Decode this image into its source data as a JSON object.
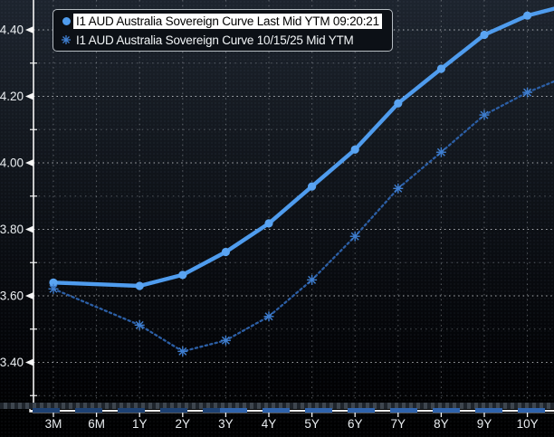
{
  "window": {
    "description": "Sovereign yield curve chart",
    "background_top": "#1d242e",
    "background_bottom": "#000000"
  },
  "legend": {
    "items": [
      {
        "label": "I1 AUD Australia Sovereign Curve Last Mid YTM 09:20:21",
        "marker": "circle-icon",
        "marker_color": "#4f9cee",
        "highlighted": true
      },
      {
        "label": "I1 AUD Australia Sovereign Curve 10/15/25 Mid YTM",
        "marker": "asterisk-icon",
        "marker_color": "#3f7ecf",
        "highlighted": false
      }
    ]
  },
  "chart_data": {
    "type": "line",
    "title": "",
    "xlabel": "",
    "ylabel": "",
    "categories": [
      "3M",
      "6M",
      "1Y",
      "2Y",
      "3Y",
      "4Y",
      "5Y",
      "6Y",
      "7Y",
      "8Y",
      "9Y",
      "10Y"
    ],
    "ylim": [
      3.285,
      4.49
    ],
    "y_ticks_major": [
      3.4,
      3.6,
      3.8,
      4.0,
      4.2,
      4.4
    ],
    "y_ticks_minor": [
      3.3,
      3.5,
      3.7,
      3.9,
      4.1,
      4.3
    ],
    "grid": "dotted",
    "legend_position": "top-left",
    "series": [
      {
        "name": "I1 AUD Australia Sovereign Curve Last Mid YTM 09:20:21",
        "style": "solid",
        "marker": "circle",
        "color": "#4f9cee",
        "marker_color": "#5aa4f2",
        "points": [
          {
            "tenor": "3M",
            "value": 3.64
          },
          {
            "tenor": "1Y",
            "value": 3.63
          },
          {
            "tenor": "2Y",
            "value": 3.663
          },
          {
            "tenor": "3Y",
            "value": 3.732
          },
          {
            "tenor": "4Y",
            "value": 3.818
          },
          {
            "tenor": "5Y",
            "value": 3.929
          },
          {
            "tenor": "6Y",
            "value": 4.04
          },
          {
            "tenor": "7Y",
            "value": 4.179
          },
          {
            "tenor": "8Y",
            "value": 4.283
          },
          {
            "tenor": "9Y",
            "value": 4.385
          },
          {
            "tenor": "10Y",
            "value": 4.443
          }
        ],
        "right_edge_value": 4.465
      },
      {
        "name": "I1 AUD Australia Sovereign Curve 10/15/25 Mid YTM",
        "style": "dotted",
        "marker": "asterisk",
        "color": "#2c5fa6",
        "marker_color": "#3f7ecf",
        "points": [
          {
            "tenor": "3M",
            "value": 3.621
          },
          {
            "tenor": "1Y",
            "value": 3.512
          },
          {
            "tenor": "2Y",
            "value": 3.433
          },
          {
            "tenor": "3Y",
            "value": 3.466
          },
          {
            "tenor": "4Y",
            "value": 3.538
          },
          {
            "tenor": "5Y",
            "value": 3.648
          },
          {
            "tenor": "6Y",
            "value": 3.779
          },
          {
            "tenor": "7Y",
            "value": 3.923
          },
          {
            "tenor": "8Y",
            "value": 4.032
          },
          {
            "tenor": "9Y",
            "value": 4.144
          },
          {
            "tenor": "10Y",
            "value": 4.212
          }
        ],
        "right_edge_value": 4.247
      }
    ]
  },
  "axes": {
    "axis_color": "#f5f5f5",
    "label_color": "#e9edf0",
    "grid_major_color": "rgba(225,228,232,0.75)",
    "grid_minor_color": "rgba(150,156,163,0.5)",
    "grid_vertical_color": "rgba(165,170,176,0.5)"
  },
  "scrollbar": {
    "track_color": "#3e464f",
    "track_dash_color": "#1e242b",
    "range_dim_color": "#1d4173",
    "range_bright_color": "#2f63ac",
    "axis_line_color": "#f5f5f5"
  }
}
